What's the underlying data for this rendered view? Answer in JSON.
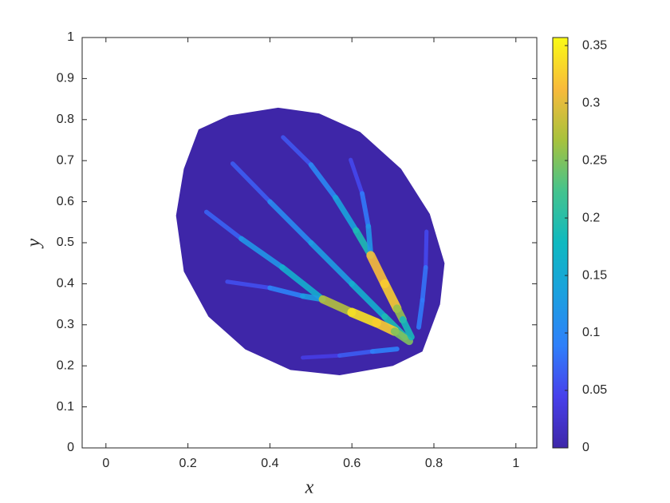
{
  "chart_data": {
    "type": "field",
    "xlabel": "x",
    "ylabel": "y",
    "xlim": [
      -0.058,
      1.051
    ],
    "ylim": [
      0,
      1
    ],
    "xticks": [
      0,
      0.2,
      0.4,
      0.6,
      0.8,
      1
    ],
    "yticks": [
      0,
      0.1,
      0.2,
      0.3,
      0.4,
      0.5,
      0.6,
      0.7,
      0.8,
      0.9,
      1
    ],
    "colormap": "parula",
    "clim": [
      0,
      0.357
    ],
    "cticks": [
      0,
      0.05,
      0.1,
      0.15,
      0.2,
      0.25,
      0.3,
      0.35
    ],
    "region": {
      "value": 0,
      "x": [
        0.226,
        0.3,
        0.42,
        0.52,
        0.62,
        0.72,
        0.79,
        0.826,
        0.815,
        0.772,
        0.7,
        0.57,
        0.45,
        0.34,
        0.25,
        0.19,
        0.171,
        0.19
      ],
      "y": [
        0.776,
        0.81,
        0.829,
        0.815,
        0.77,
        0.68,
        0.57,
        0.45,
        0.35,
        0.235,
        0.2,
        0.177,
        0.19,
        0.24,
        0.32,
        0.43,
        0.566,
        0.68
      ]
    },
    "veins": [
      {
        "x": [
          0.309,
          0.4,
          0.5,
          0.6,
          0.68,
          0.73
        ],
        "y": [
          0.693,
          0.6,
          0.5,
          0.4,
          0.32,
          0.27
        ],
        "values": [
          0.04,
          0.09,
          0.12,
          0.14,
          0.18,
          0.2
        ]
      },
      {
        "x": [
          0.245,
          0.33,
          0.43,
          0.529
        ],
        "y": [
          0.575,
          0.51,
          0.44,
          0.362
        ],
        "values": [
          0.04,
          0.1,
          0.14,
          0.18
        ]
      },
      {
        "x": [
          0.296,
          0.4,
          0.48,
          0.529
        ],
        "y": [
          0.405,
          0.39,
          0.37,
          0.362
        ],
        "values": [
          0.03,
          0.08,
          0.11,
          0.15
        ]
      },
      {
        "x": [
          0.529,
          0.6,
          0.66,
          0.704,
          0.74
        ],
        "y": [
          0.362,
          0.33,
          0.305,
          0.284,
          0.26
        ],
        "values": [
          0.22,
          0.33,
          0.35,
          0.3,
          0.2
        ]
      },
      {
        "x": [
          0.432,
          0.5,
          0.56,
          0.61,
          0.646
        ],
        "y": [
          0.757,
          0.69,
          0.61,
          0.53,
          0.469
        ],
        "values": [
          0.04,
          0.08,
          0.12,
          0.16,
          0.22
        ]
      },
      {
        "x": [
          0.597,
          0.625,
          0.64,
          0.646
        ],
        "y": [
          0.702,
          0.62,
          0.54,
          0.469
        ],
        "values": [
          0.03,
          0.07,
          0.1,
          0.14
        ]
      },
      {
        "x": [
          0.646,
          0.68,
          0.71,
          0.724,
          0.745
        ],
        "y": [
          0.469,
          0.4,
          0.34,
          0.313,
          0.27
        ],
        "values": [
          0.28,
          0.35,
          0.3,
          0.22,
          0.15
        ]
      },
      {
        "x": [
          0.782,
          0.78,
          0.772,
          0.763
        ],
        "y": [
          0.527,
          0.44,
          0.36,
          0.294
        ],
        "values": [
          0.03,
          0.07,
          0.09,
          0.08
        ]
      },
      {
        "x": [
          0.48,
          0.57,
          0.65,
          0.71
        ],
        "y": [
          0.22,
          0.225,
          0.235,
          0.241
        ],
        "values": [
          0.03,
          0.05,
          0.08,
          0.1
        ]
      }
    ]
  }
}
